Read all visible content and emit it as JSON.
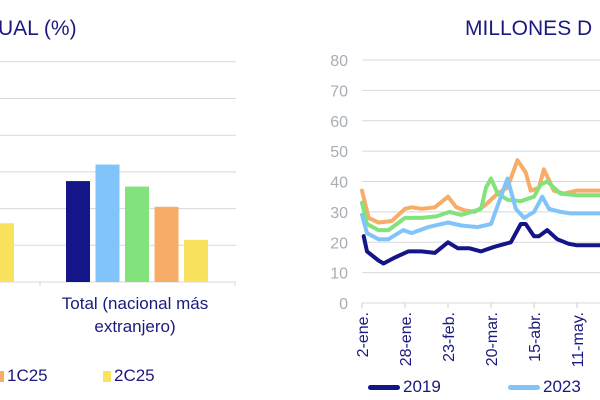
{
  "chart_data": [
    {
      "type": "bar",
      "title": "UAL (%)",
      "categories": [
        "",
        "Total (nacional más extranjero)"
      ],
      "series": [
        {
          "name": "",
          "color": "#15158a",
          "values": [
            null,
            2.75
          ]
        },
        {
          "name": "",
          "color": "#80c4fa",
          "values": [
            null,
            3.2
          ]
        },
        {
          "name": "",
          "color": "#82e27b",
          "values": [
            null,
            2.6
          ]
        },
        {
          "name": "1C25",
          "color": "#f7ac68",
          "values": [
            null,
            2.05
          ]
        },
        {
          "name": "2C25",
          "color": "#f9e25e",
          "values": [
            1.6,
            1.15
          ]
        }
      ],
      "ylim": [
        0,
        6
      ],
      "grid": true,
      "legend_placement": "bottom"
    },
    {
      "type": "line",
      "title": "MILLONES D",
      "ylim": [
        0,
        80
      ],
      "yticks": [
        "0",
        "10",
        "20",
        "30",
        "40",
        "50",
        "60",
        "70",
        "80"
      ],
      "xtick_labels": [
        "2-ene.",
        "28-ene.",
        "23-feb.",
        "20-mar.",
        "15-abr.",
        "11-may."
      ],
      "xtick_days": [
        0,
        26,
        52,
        78,
        104,
        130
      ],
      "grid": true,
      "legend_placement": "bottom",
      "series": [
        {
          "name": "2019",
          "color": "#15158a",
          "x": [
            1,
            3,
            10,
            13,
            20,
            28,
            36,
            44,
            52,
            58,
            65,
            72,
            80,
            90,
            96,
            99,
            104,
            107,
            112,
            118,
            125,
            130,
            144
          ],
          "y": [
            22,
            17,
            14,
            13,
            15,
            17,
            17,
            16.5,
            20,
            18,
            18,
            17,
            18.5,
            20,
            26,
            26,
            22,
            22,
            24,
            21,
            19.5,
            19,
            19
          ]
        },
        {
          "name": "2023",
          "color": "#80c4fa",
          "x": [
            0,
            3,
            10,
            16,
            25,
            30,
            40,
            52,
            60,
            70,
            78,
            84,
            88,
            93,
            98,
            104,
            109,
            113,
            120,
            126,
            144
          ],
          "y": [
            29,
            23,
            21,
            21,
            24,
            23,
            25,
            26.5,
            25.5,
            25,
            26,
            35,
            41,
            31,
            28,
            30,
            35,
            31,
            30,
            29.5,
            29.5
          ]
        },
        {
          "name": "",
          "color": "#82e27b",
          "x": [
            0,
            3,
            10,
            16,
            26,
            36,
            45,
            53,
            60,
            66,
            72,
            75,
            78,
            82,
            88,
            96,
            104,
            108,
            112,
            120,
            130,
            144
          ],
          "y": [
            33,
            26,
            24,
            24,
            28,
            28,
            28.5,
            30,
            29,
            30,
            31,
            38,
            41,
            36,
            34,
            33.5,
            35,
            39,
            40,
            36,
            35.5,
            35.5
          ]
        },
        {
          "name": "",
          "color": "#f7ac68",
          "x": [
            0,
            4,
            10,
            18,
            26,
            30,
            36,
            44,
            52,
            57,
            62,
            68,
            74,
            82,
            88,
            94,
            99,
            102,
            107,
            110,
            116,
            122,
            130,
            144
          ],
          "y": [
            37,
            28,
            26.5,
            27,
            31,
            31.5,
            31,
            31.5,
            35,
            31.5,
            30.5,
            30,
            32,
            36,
            38,
            47,
            43,
            37,
            38,
            44,
            37,
            36,
            37,
            37
          ]
        }
      ]
    }
  ]
}
